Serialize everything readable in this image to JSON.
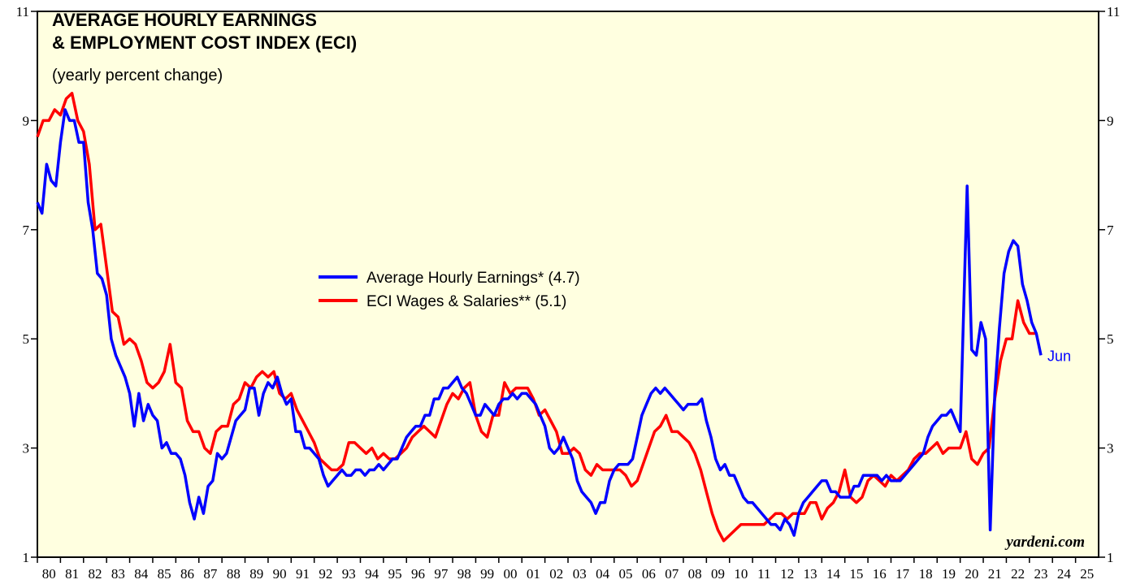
{
  "chart_data": {
    "type": "line",
    "title": [
      "AVERAGE HOURLY EARNINGS",
      "& EMPLOYMENT COST INDEX (ECI)"
    ],
    "subtitle": "(yearly percent change)",
    "source": "yardeni.com",
    "annotation": "Jun",
    "xlim": [
      1980,
      2026
    ],
    "xticks": [
      {
        "value": 1980,
        "label": "80"
      },
      {
        "value": 1981,
        "label": "81"
      },
      {
        "value": 1982,
        "label": "82"
      },
      {
        "value": 1983,
        "label": "83"
      },
      {
        "value": 1984,
        "label": "84"
      },
      {
        "value": 1985,
        "label": "85"
      },
      {
        "value": 1986,
        "label": "86"
      },
      {
        "value": 1987,
        "label": "87"
      },
      {
        "value": 1988,
        "label": "88"
      },
      {
        "value": 1989,
        "label": "89"
      },
      {
        "value": 1990,
        "label": "90"
      },
      {
        "value": 1991,
        "label": "91"
      },
      {
        "value": 1992,
        "label": "92"
      },
      {
        "value": 1993,
        "label": "93"
      },
      {
        "value": 1994,
        "label": "94"
      },
      {
        "value": 1995,
        "label": "95"
      },
      {
        "value": 1996,
        "label": "96"
      },
      {
        "value": 1997,
        "label": "97"
      },
      {
        "value": 1998,
        "label": "98"
      },
      {
        "value": 1999,
        "label": "99"
      },
      {
        "value": 2000,
        "label": "00"
      },
      {
        "value": 2001,
        "label": "01"
      },
      {
        "value": 2002,
        "label": "02"
      },
      {
        "value": 2003,
        "label": "03"
      },
      {
        "value": 2004,
        "label": "04"
      },
      {
        "value": 2005,
        "label": "05"
      },
      {
        "value": 2006,
        "label": "06"
      },
      {
        "value": 2007,
        "label": "07"
      },
      {
        "value": 2008,
        "label": "08"
      },
      {
        "value": 2009,
        "label": "09"
      },
      {
        "value": 2010,
        "label": "10"
      },
      {
        "value": 2011,
        "label": "11"
      },
      {
        "value": 2012,
        "label": "12"
      },
      {
        "value": 2013,
        "label": "13"
      },
      {
        "value": 2014,
        "label": "14"
      },
      {
        "value": 2015,
        "label": "15"
      },
      {
        "value": 2016,
        "label": "16"
      },
      {
        "value": 2017,
        "label": "17"
      },
      {
        "value": 2018,
        "label": "18"
      },
      {
        "value": 2019,
        "label": "19"
      },
      {
        "value": 2020,
        "label": "20"
      },
      {
        "value": 2021,
        "label": "21"
      },
      {
        "value": 2022,
        "label": "22"
      },
      {
        "value": 2023,
        "label": "23"
      },
      {
        "value": 2024,
        "label": "24"
      },
      {
        "value": 2025,
        "label": "25"
      }
    ],
    "ylim": [
      1,
      11
    ],
    "yticks": [
      1,
      3,
      5,
      7,
      9,
      11
    ],
    "series": [
      {
        "name": "Average Hourly Earnings* (4.7)",
        "color": "#0000ff",
        "x": [
          1980.0,
          1980.2,
          1980.4,
          1980.6,
          1980.8,
          1981.0,
          1981.2,
          1981.4,
          1981.6,
          1981.8,
          1982.0,
          1982.2,
          1982.4,
          1982.6,
          1982.8,
          1983.0,
          1983.2,
          1983.4,
          1983.6,
          1983.8,
          1984.0,
          1984.2,
          1984.4,
          1984.6,
          1984.8,
          1985.0,
          1985.2,
          1985.4,
          1985.6,
          1985.8,
          1986.0,
          1986.2,
          1986.4,
          1986.6,
          1986.8,
          1987.0,
          1987.2,
          1987.4,
          1987.6,
          1987.8,
          1988.0,
          1988.2,
          1988.4,
          1988.6,
          1988.8,
          1989.0,
          1989.2,
          1989.4,
          1989.6,
          1989.8,
          1990.0,
          1990.2,
          1990.4,
          1990.6,
          1990.8,
          1991.0,
          1991.2,
          1991.4,
          1991.6,
          1991.8,
          1992.0,
          1992.2,
          1992.4,
          1992.6,
          1992.8,
          1993.0,
          1993.2,
          1993.4,
          1993.6,
          1993.8,
          1994.0,
          1994.2,
          1994.4,
          1994.6,
          1994.8,
          1995.0,
          1995.2,
          1995.4,
          1995.6,
          1995.8,
          1996.0,
          1996.2,
          1996.4,
          1996.6,
          1996.8,
          1997.0,
          1997.2,
          1997.4,
          1997.6,
          1997.8,
          1998.0,
          1998.2,
          1998.4,
          1998.6,
          1998.8,
          1999.0,
          1999.2,
          1999.4,
          1999.6,
          1999.8,
          2000.0,
          2000.2,
          2000.4,
          2000.6,
          2000.8,
          2001.0,
          2001.2,
          2001.4,
          2001.6,
          2001.8,
          2002.0,
          2002.2,
          2002.4,
          2002.6,
          2002.8,
          2003.0,
          2003.2,
          2003.4,
          2003.6,
          2003.8,
          2004.0,
          2004.2,
          2004.4,
          2004.6,
          2004.8,
          2005.0,
          2005.2,
          2005.4,
          2005.6,
          2005.8,
          2006.0,
          2006.2,
          2006.4,
          2006.6,
          2006.8,
          2007.0,
          2007.2,
          2007.4,
          2007.6,
          2007.8,
          2008.0,
          2008.2,
          2008.4,
          2008.6,
          2008.8,
          2009.0,
          2009.2,
          2009.4,
          2009.6,
          2009.8,
          2010.0,
          2010.2,
          2010.4,
          2010.6,
          2010.8,
          2011.0,
          2011.2,
          2011.4,
          2011.6,
          2011.8,
          2012.0,
          2012.2,
          2012.4,
          2012.6,
          2012.8,
          2013.0,
          2013.2,
          2013.4,
          2013.6,
          2013.8,
          2014.0,
          2014.2,
          2014.4,
          2014.6,
          2014.8,
          2015.0,
          2015.2,
          2015.4,
          2015.6,
          2015.8,
          2016.0,
          2016.2,
          2016.4,
          2016.6,
          2016.8,
          2017.0,
          2017.2,
          2017.4,
          2017.6,
          2017.8,
          2018.0,
          2018.2,
          2018.4,
          2018.6,
          2018.8,
          2019.0,
          2019.2,
          2019.4,
          2019.6,
          2019.8,
          2020.0,
          2020.3,
          2020.5,
          2020.7,
          2020.9,
          2021.1,
          2021.3,
          2021.5,
          2021.7,
          2021.9,
          2022.1,
          2022.3,
          2022.5,
          2022.7,
          2022.9,
          2023.1,
          2023.3,
          2023.5
        ],
        "values": [
          7.5,
          7.3,
          8.2,
          7.9,
          7.8,
          8.6,
          9.2,
          9.0,
          9.0,
          8.6,
          8.6,
          7.5,
          7.0,
          6.2,
          6.1,
          5.8,
          5.0,
          4.7,
          4.5,
          4.3,
          4.0,
          3.4,
          4.0,
          3.5,
          3.8,
          3.6,
          3.5,
          3.0,
          3.1,
          2.9,
          2.9,
          2.8,
          2.5,
          2.0,
          1.7,
          2.1,
          1.8,
          2.3,
          2.4,
          2.9,
          2.8,
          2.9,
          3.2,
          3.5,
          3.6,
          3.7,
          4.1,
          4.1,
          3.6,
          4.0,
          4.2,
          4.1,
          4.3,
          4.0,
          3.8,
          3.9,
          3.3,
          3.3,
          3.0,
          3.0,
          2.9,
          2.8,
          2.5,
          2.3,
          2.4,
          2.5,
          2.6,
          2.5,
          2.5,
          2.6,
          2.6,
          2.5,
          2.6,
          2.6,
          2.7,
          2.6,
          2.7,
          2.8,
          2.8,
          3.0,
          3.2,
          3.3,
          3.4,
          3.4,
          3.6,
          3.6,
          3.9,
          3.9,
          4.1,
          4.1,
          4.2,
          4.3,
          4.1,
          4.0,
          3.8,
          3.6,
          3.6,
          3.8,
          3.7,
          3.6,
          3.8,
          3.9,
          3.9,
          4.0,
          3.9,
          4.0,
          4.0,
          3.9,
          3.8,
          3.6,
          3.4,
          3.0,
          2.9,
          3.0,
          3.2,
          3.0,
          2.8,
          2.4,
          2.2,
          2.1,
          2.0,
          1.8,
          2.0,
          2.0,
          2.4,
          2.6,
          2.7,
          2.7,
          2.7,
          2.8,
          3.2,
          3.6,
          3.8,
          4.0,
          4.1,
          4.0,
          4.1,
          4.0,
          3.9,
          3.8,
          3.7,
          3.8,
          3.8,
          3.8,
          3.9,
          3.5,
          3.2,
          2.8,
          2.6,
          2.7,
          2.5,
          2.5,
          2.3,
          2.1,
          2.0,
          2.0,
          1.9,
          1.8,
          1.7,
          1.6,
          1.6,
          1.5,
          1.7,
          1.6,
          1.4,
          1.8,
          2.0,
          2.1,
          2.2,
          2.3,
          2.4,
          2.4,
          2.2,
          2.2,
          2.1,
          2.1,
          2.1,
          2.3,
          2.3,
          2.5,
          2.5,
          2.5,
          2.5,
          2.4,
          2.5,
          2.4,
          2.4,
          2.4,
          2.5,
          2.6,
          2.7,
          2.8,
          2.9,
          3.2,
          3.4,
          3.5,
          3.6,
          3.6,
          3.7,
          3.5,
          3.3,
          7.8,
          4.8,
          4.7,
          5.3,
          5.0,
          1.5,
          4.0,
          5.2,
          6.2,
          6.6,
          6.8,
          6.7,
          6.0,
          5.7,
          5.3,
          5.1,
          4.7
        ]
      },
      {
        "name": "ECI Wages & Salaries** (5.1)",
        "color": "#ff0000",
        "x": [
          1980.0,
          1980.25,
          1980.5,
          1980.75,
          1981.0,
          1981.25,
          1981.5,
          1981.75,
          1982.0,
          1982.25,
          1982.5,
          1982.75,
          1983.0,
          1983.25,
          1983.5,
          1983.75,
          1984.0,
          1984.25,
          1984.5,
          1984.75,
          1985.0,
          1985.25,
          1985.5,
          1985.75,
          1986.0,
          1986.25,
          1986.5,
          1986.75,
          1987.0,
          1987.25,
          1987.5,
          1987.75,
          1988.0,
          1988.25,
          1988.5,
          1988.75,
          1989.0,
          1989.25,
          1989.5,
          1989.75,
          1990.0,
          1990.25,
          1990.5,
          1990.75,
          1991.0,
          1991.25,
          1991.5,
          1991.75,
          1992.0,
          1992.25,
          1992.5,
          1992.75,
          1993.0,
          1993.25,
          1993.5,
          1993.75,
          1994.0,
          1994.25,
          1994.5,
          1994.75,
          1995.0,
          1995.25,
          1995.5,
          1995.75,
          1996.0,
          1996.25,
          1996.5,
          1996.75,
          1997.0,
          1997.25,
          1997.5,
          1997.75,
          1998.0,
          1998.25,
          1998.5,
          1998.75,
          1999.0,
          1999.25,
          1999.5,
          1999.75,
          2000.0,
          2000.25,
          2000.5,
          2000.75,
          2001.0,
          2001.25,
          2001.5,
          2001.75,
          2002.0,
          2002.25,
          2002.5,
          2002.75,
          2003.0,
          2003.25,
          2003.5,
          2003.75,
          2004.0,
          2004.25,
          2004.5,
          2004.75,
          2005.0,
          2005.25,
          2005.5,
          2005.75,
          2006.0,
          2006.25,
          2006.5,
          2006.75,
          2007.0,
          2007.25,
          2007.5,
          2007.75,
          2008.0,
          2008.25,
          2008.5,
          2008.75,
          2009.0,
          2009.25,
          2009.5,
          2009.75,
          2010.0,
          2010.25,
          2010.5,
          2010.75,
          2011.0,
          2011.25,
          2011.5,
          2011.75,
          2012.0,
          2012.25,
          2012.5,
          2012.75,
          2013.0,
          2013.25,
          2013.5,
          2013.75,
          2014.0,
          2014.25,
          2014.5,
          2014.75,
          2015.0,
          2015.25,
          2015.5,
          2015.75,
          2016.0,
          2016.25,
          2016.5,
          2016.75,
          2017.0,
          2017.25,
          2017.5,
          2017.75,
          2018.0,
          2018.25,
          2018.5,
          2018.75,
          2019.0,
          2019.25,
          2019.5,
          2019.75,
          2020.0,
          2020.25,
          2020.5,
          2020.75,
          2021.0,
          2021.25,
          2021.5,
          2021.75,
          2022.0,
          2022.25,
          2022.5,
          2022.75,
          2023.0,
          2023.25
        ],
        "values": [
          8.7,
          9.0,
          9.0,
          9.2,
          9.1,
          9.4,
          9.5,
          9.0,
          8.8,
          8.2,
          7.0,
          7.1,
          6.3,
          5.5,
          5.4,
          4.9,
          5.0,
          4.9,
          4.6,
          4.2,
          4.1,
          4.2,
          4.4,
          4.9,
          4.2,
          4.1,
          3.5,
          3.3,
          3.3,
          3.0,
          2.9,
          3.3,
          3.4,
          3.4,
          3.8,
          3.9,
          4.2,
          4.1,
          4.3,
          4.4,
          4.3,
          4.4,
          4.0,
          3.9,
          4.0,
          3.7,
          3.5,
          3.3,
          3.1,
          2.8,
          2.7,
          2.6,
          2.6,
          2.7,
          3.1,
          3.1,
          3.0,
          2.9,
          3.0,
          2.8,
          2.9,
          2.8,
          2.8,
          2.9,
          3.0,
          3.2,
          3.3,
          3.4,
          3.3,
          3.2,
          3.5,
          3.8,
          4.0,
          3.9,
          4.1,
          4.2,
          3.6,
          3.3,
          3.2,
          3.6,
          3.6,
          4.2,
          4.0,
          4.1,
          4.1,
          4.1,
          3.9,
          3.6,
          3.7,
          3.5,
          3.3,
          2.9,
          2.9,
          3.0,
          2.9,
          2.6,
          2.5,
          2.7,
          2.6,
          2.6,
          2.6,
          2.6,
          2.5,
          2.3,
          2.4,
          2.7,
          3.0,
          3.3,
          3.4,
          3.6,
          3.3,
          3.3,
          3.2,
          3.1,
          2.9,
          2.6,
          2.2,
          1.8,
          1.5,
          1.3,
          1.4,
          1.5,
          1.6,
          1.6,
          1.6,
          1.6,
          1.6,
          1.7,
          1.8,
          1.8,
          1.7,
          1.8,
          1.8,
          1.8,
          2.0,
          2.0,
          1.7,
          1.9,
          2.0,
          2.2,
          2.6,
          2.1,
          2.0,
          2.1,
          2.4,
          2.5,
          2.4,
          2.3,
          2.5,
          2.4,
          2.5,
          2.6,
          2.8,
          2.9,
          2.9,
          3.0,
          3.1,
          2.9,
          3.0,
          3.0,
          3.0,
          3.3,
          2.8,
          2.7,
          2.9,
          3.0,
          3.9,
          4.6,
          5.0,
          5.0,
          5.7,
          5.3,
          5.1,
          5.1
        ]
      }
    ]
  }
}
